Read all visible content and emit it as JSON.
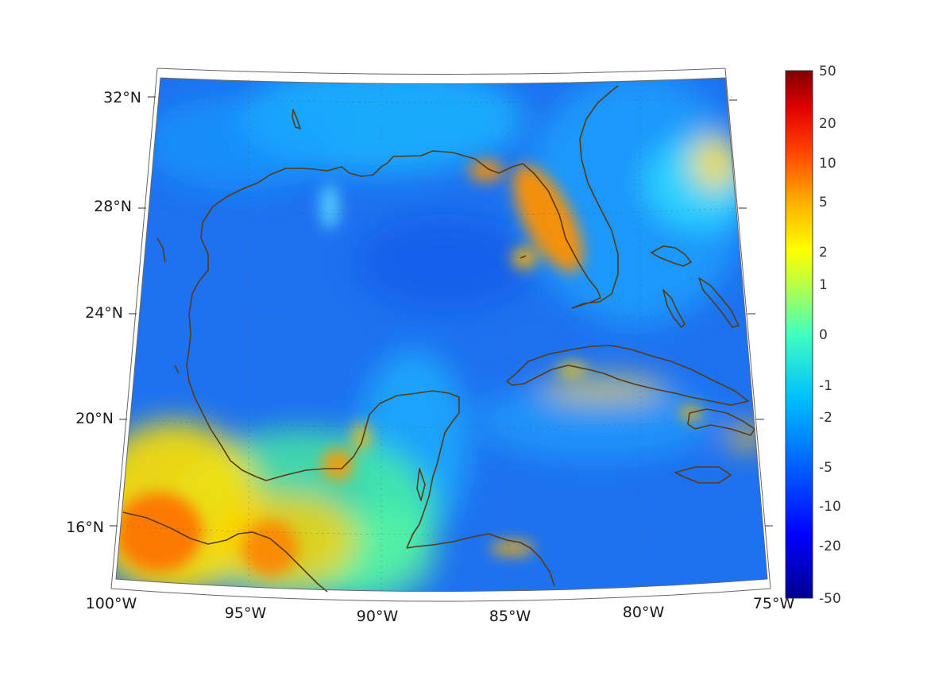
{
  "map": {
    "lat_labels": [
      "32°N",
      "28°N",
      "24°N",
      "20°N",
      "16°N"
    ],
    "lon_labels": [
      "100°W",
      "95°W",
      "90°W",
      "85°W",
      "80°W",
      "75°W"
    ],
    "extent": {
      "lon_min": -100,
      "lon_max": -75,
      "lat_min": 14,
      "lat_max": 32.5
    },
    "coastline_color": "#5a3a12",
    "field_base_color": "#1e6eff"
  },
  "colorbar": {
    "ticks": [
      "50",
      "20",
      "10",
      "5",
      "2",
      "1",
      "0",
      "-1",
      "-2",
      "-5",
      "-10",
      "-20",
      "-50"
    ],
    "colormap": "jet",
    "colors": [
      "#00008f",
      "#0000ff",
      "#0080ff",
      "#00ffff",
      "#80ff80",
      "#ffff00",
      "#ff8000",
      "#ff0000",
      "#800000"
    ]
  }
}
